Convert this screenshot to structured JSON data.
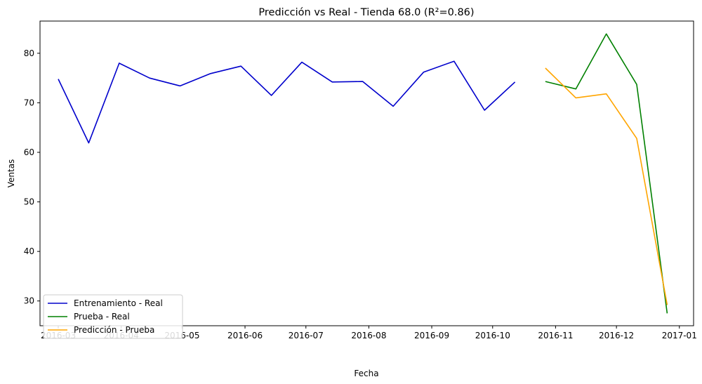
{
  "chart_data": {
    "type": "line",
    "title": "Predicción vs Real - Tienda 68.0 (R²=0.86)",
    "xlabel": "Fecha",
    "ylabel": "Ventas",
    "x_tick_labels": [
      "2016-03",
      "2016-04",
      "2016-05",
      "2016-06",
      "2016-07",
      "2016-08",
      "2016-09",
      "2016-10",
      "2016-11",
      "2016-12",
      "2017-01"
    ],
    "y_ticks": [
      30,
      40,
      50,
      60,
      70,
      80
    ],
    "ylim": [
      25,
      86.5
    ],
    "xlim": [
      "2016-02-21",
      "2017-01-08"
    ],
    "grid": false,
    "legend_position": "lower-left",
    "series": [
      {
        "name": "Entrenamiento - Real",
        "color": "#0000cc",
        "x": [
          "2016-03-01",
          "2016-03-16",
          "2016-03-31",
          "2016-04-15",
          "2016-04-30",
          "2016-05-15",
          "2016-05-30",
          "2016-06-14",
          "2016-06-29",
          "2016-07-14",
          "2016-07-29",
          "2016-08-13",
          "2016-08-28",
          "2016-09-12",
          "2016-09-27",
          "2016-10-12"
        ],
        "y": [
          74.8,
          61.9,
          78.0,
          75.0,
          73.4,
          75.9,
          77.4,
          71.5,
          78.2,
          74.2,
          74.3,
          69.3,
          76.2,
          78.4,
          68.5,
          74.2
        ]
      },
      {
        "name": "Prueba - Real",
        "color": "#008000",
        "x": [
          "2016-10-27",
          "2016-11-11",
          "2016-11-26",
          "2016-12-11",
          "2016-12-26"
        ],
        "y": [
          74.3,
          72.8,
          83.9,
          73.7,
          27.5
        ]
      },
      {
        "name": "Predicción - Prueba",
        "color": "#ffa500",
        "x": [
          "2016-10-27",
          "2016-11-11",
          "2016-11-26",
          "2016-12-11",
          "2016-12-26"
        ],
        "y": [
          77.0,
          71.0,
          71.8,
          62.8,
          29.2
        ]
      }
    ]
  }
}
